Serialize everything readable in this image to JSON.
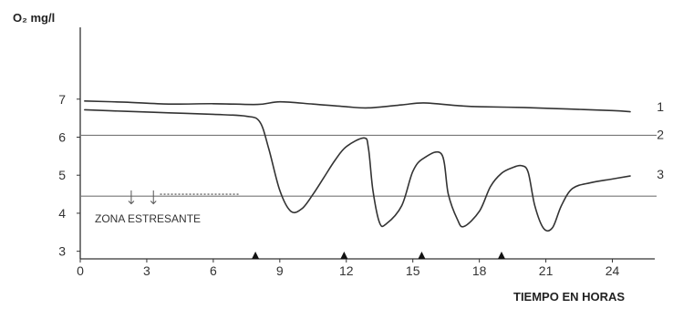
{
  "chart_data": {
    "type": "line",
    "ylabel": "O₂ mg/l",
    "xlabel": "TIEMPO EN HORAS",
    "xlim": [
      0,
      25.5
    ],
    "ylim": [
      2.8,
      8.6
    ],
    "x_ticks": [
      0,
      3,
      6,
      9,
      12,
      15,
      18,
      21,
      24
    ],
    "y_ticks": [
      3,
      4,
      5,
      6,
      7
    ],
    "reference_lines": [
      {
        "name": "2",
        "y": 6.05
      },
      {
        "name": "",
        "y": 4.45
      }
    ],
    "zone_label": "ZONA ESTRESANTE",
    "zone_arrows_x": [
      2.3,
      3.3
    ],
    "zone_dotted_x": [
      3.6,
      7.2
    ],
    "zone_dotted_y": 4.5,
    "markers_x": [
      7.9,
      11.9,
      15.4,
      19.0
    ],
    "series": [
      {
        "name": "1",
        "x": [
          0.2,
          2,
          4,
          6,
          8,
          9,
          10.5,
          12,
          13,
          14.5,
          15.5,
          17,
          18,
          20,
          22,
          24,
          24.8
        ],
        "y": [
          6.95,
          6.92,
          6.87,
          6.88,
          6.86,
          6.93,
          6.87,
          6.8,
          6.77,
          6.85,
          6.9,
          6.83,
          6.8,
          6.78,
          6.74,
          6.7,
          6.67
        ]
      },
      {
        "name": "3",
        "x": [
          0.2,
          2,
          4,
          6,
          7.5,
          8.1,
          8.5,
          9,
          9.5,
          10,
          10.5,
          11,
          11.5,
          12,
          12.8,
          13,
          13.2,
          13.5,
          13.8,
          14.5,
          15,
          15.5,
          16.3,
          16.6,
          17,
          17.3,
          18,
          18.5,
          19,
          19.5,
          19.9,
          20.2,
          20.5,
          20.9,
          21.3,
          21.7,
          22.2,
          23,
          24,
          24.8
        ],
        "y": [
          6.72,
          6.68,
          6.64,
          6.6,
          6.55,
          6.4,
          5.7,
          4.6,
          4.05,
          4.12,
          4.5,
          4.95,
          5.4,
          5.75,
          5.98,
          5.7,
          4.6,
          3.75,
          3.72,
          4.2,
          5.1,
          5.45,
          5.55,
          4.5,
          3.85,
          3.65,
          4.05,
          4.7,
          5.05,
          5.2,
          5.25,
          5.08,
          4.2,
          3.6,
          3.62,
          4.2,
          4.65,
          4.8,
          4.9,
          4.98
        ]
      }
    ]
  }
}
